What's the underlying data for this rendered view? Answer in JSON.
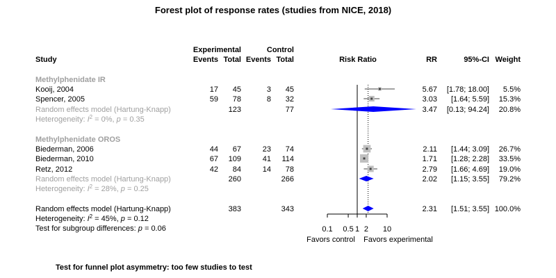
{
  "chart_data": {
    "type": "forest",
    "title": "Forest plot of response rates (studies from NICE, 2018)",
    "columns": {
      "study": "Study",
      "experimental": "Experimental",
      "control": "Control",
      "events": "Events",
      "total": "Total",
      "risk_ratio": "Risk Ratio",
      "rr": "RR",
      "ci": "95%-CI",
      "weight": "Weight"
    },
    "colors": {
      "diamond": "#0000ff",
      "subgroup_text": "#a0a0a0",
      "box": "#c0c0c0"
    },
    "groups": [
      {
        "name": "Methylphenidate IR",
        "studies": [
          {
            "study": "Kooij, 2004",
            "e_events": "17",
            "e_total": "45",
            "c_events": "3",
            "c_total": "45",
            "rr": 5.67,
            "lower": 1.78,
            "upper": 18.0,
            "rr_text": "5.67",
            "ci_text": "[1.78; 18.00]",
            "weight_text": "5.5%",
            "weight": 5.5
          },
          {
            "study": "Spencer, 2005",
            "e_events": "59",
            "e_total": "78",
            "c_events": "8",
            "c_total": "32",
            "rr": 3.03,
            "lower": 1.64,
            "upper": 5.59,
            "rr_text": "3.03",
            "ci_text": "[1.64; 5.59]",
            "weight_text": "15.3%",
            "weight": 15.3
          }
        ],
        "pooled": {
          "label": "Random effects model (Hartung-Knapp)",
          "e_total": "123",
          "c_total": "77",
          "rr": 3.47,
          "lower": 0.13,
          "upper": 94.24,
          "rr_text": "3.47",
          "ci_text": "[0.13; 94.24]",
          "weight_text": "20.8%"
        },
        "heterogeneity": {
          "prefix": "Heterogeneity: ",
          "i2_sym": "I",
          "i2_sup": "2",
          "i2_val": " = 0%, ",
          "p_sym": "p",
          "p_val": " = 0.35"
        }
      },
      {
        "name": "Methylphenidate OROS",
        "studies": [
          {
            "study": "Biederman, 2006",
            "e_events": "44",
            "e_total": "67",
            "c_events": "23",
            "c_total": "74",
            "rr": 2.11,
            "lower": 1.44,
            "upper": 3.09,
            "rr_text": "2.11",
            "ci_text": "[1.44; 3.09]",
            "weight_text": "26.7%",
            "weight": 26.7
          },
          {
            "study": "Biederman, 2010",
            "e_events": "67",
            "e_total": "109",
            "c_events": "41",
            "c_total": "114",
            "rr": 1.71,
            "lower": 1.28,
            "upper": 2.28,
            "rr_text": "1.71",
            "ci_text": "[1.28; 2.28]",
            "weight_text": "33.5%",
            "weight": 33.5
          },
          {
            "study": "Retz, 2012",
            "e_events": "42",
            "e_total": "84",
            "c_events": "14",
            "c_total": "78",
            "rr": 2.79,
            "lower": 1.66,
            "upper": 4.69,
            "rr_text": "2.79",
            "ci_text": "[1.66; 4.69]",
            "weight_text": "19.0%",
            "weight": 19.0
          }
        ],
        "pooled": {
          "label": "Random effects model (Hartung-Knapp)",
          "e_total": "260",
          "c_total": "266",
          "rr": 2.02,
          "lower": 1.15,
          "upper": 3.55,
          "rr_text": "2.02",
          "ci_text": "[1.15; 3.55]",
          "weight_text": "79.2%"
        },
        "heterogeneity": {
          "prefix": "Heterogeneity: ",
          "i2_sym": "I",
          "i2_sup": "2",
          "i2_val": " = 28%, ",
          "p_sym": "p",
          "p_val": " = 0.25"
        }
      }
    ],
    "overall": {
      "label": "Random effects model (Hartung-Knapp)",
      "e_total": "383",
      "c_total": "343",
      "rr": 2.31,
      "lower": 1.51,
      "upper": 3.55,
      "rr_text": "2.31",
      "ci_text": "[1.51; 3.55]",
      "weight_text": "100.0%",
      "heterogeneity": {
        "prefix": "Heterogeneity: ",
        "i2_sym": "I",
        "i2_sup": "2",
        "i2_val": " = 45%, ",
        "p_sym": "p",
        "p_val": " = 0.12"
      },
      "subgroup_test": {
        "prefix": "Test for subgroup differences:  ",
        "p_sym": "p",
        "p_val": " = 0.06"
      }
    },
    "axis": {
      "scale": "log",
      "xlim": [
        0.1,
        10
      ],
      "ticks": [
        0.1,
        0.5,
        1,
        2,
        10
      ],
      "tick_labels": [
        "0.1",
        "0.5",
        "1",
        "2",
        "10"
      ],
      "null_value": 1,
      "label_left": "Favors control",
      "label_right": "Favors experimental"
    },
    "footnote": "Test for funnel plot asymmetry: too few studies to test"
  }
}
